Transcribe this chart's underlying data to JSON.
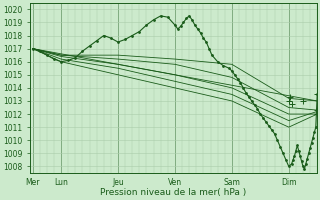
{
  "title": "Pression niveau de la mer( hPa )",
  "bg_color": "#cceacc",
  "grid_color": "#aaccaa",
  "line_color": "#1a5c1a",
  "ylim": [
    1007.5,
    1020.5
  ],
  "yticks": [
    1008,
    1009,
    1010,
    1011,
    1012,
    1013,
    1014,
    1015,
    1016,
    1017,
    1018,
    1019,
    1020
  ],
  "day_labels": [
    "Mer",
    "Lun",
    "Jeu",
    "Ven",
    "Sam",
    "Dim"
  ],
  "day_positions": [
    0,
    1,
    3,
    5,
    7,
    9
  ],
  "xlim": [
    -0.1,
    10
  ],
  "series_main": [
    [
      0,
      1017.0
    ],
    [
      0.25,
      1016.8
    ],
    [
      0.5,
      1016.5
    ],
    [
      0.75,
      1016.2
    ],
    [
      1.0,
      1016.0
    ],
    [
      1.25,
      1016.1
    ],
    [
      1.5,
      1016.3
    ],
    [
      1.75,
      1016.8
    ],
    [
      2.0,
      1017.2
    ],
    [
      2.25,
      1017.6
    ],
    [
      2.5,
      1018.0
    ],
    [
      2.75,
      1017.8
    ],
    [
      3.0,
      1017.5
    ],
    [
      3.25,
      1017.7
    ],
    [
      3.5,
      1018.0
    ],
    [
      3.75,
      1018.3
    ],
    [
      4.0,
      1018.8
    ],
    [
      4.25,
      1019.2
    ],
    [
      4.5,
      1019.5
    ],
    [
      4.75,
      1019.4
    ],
    [
      5.0,
      1018.8
    ],
    [
      5.1,
      1018.5
    ],
    [
      5.2,
      1018.7
    ],
    [
      5.3,
      1019.0
    ],
    [
      5.4,
      1019.3
    ],
    [
      5.5,
      1019.5
    ],
    [
      5.6,
      1019.2
    ],
    [
      5.7,
      1018.8
    ],
    [
      5.8,
      1018.5
    ],
    [
      5.9,
      1018.2
    ],
    [
      6.0,
      1017.8
    ],
    [
      6.1,
      1017.5
    ],
    [
      6.2,
      1017.0
    ],
    [
      6.3,
      1016.5
    ],
    [
      6.5,
      1016.0
    ],
    [
      6.7,
      1015.7
    ],
    [
      6.9,
      1015.5
    ],
    [
      7.0,
      1015.3
    ],
    [
      7.1,
      1015.0
    ],
    [
      7.2,
      1014.7
    ],
    [
      7.3,
      1014.4
    ],
    [
      7.4,
      1014.0
    ],
    [
      7.5,
      1013.6
    ],
    [
      7.6,
      1013.3
    ],
    [
      7.7,
      1013.0
    ],
    [
      7.8,
      1012.7
    ],
    [
      7.9,
      1012.4
    ],
    [
      8.0,
      1012.0
    ],
    [
      8.1,
      1011.7
    ],
    [
      8.2,
      1011.4
    ],
    [
      8.3,
      1011.1
    ],
    [
      8.4,
      1010.8
    ],
    [
      8.5,
      1010.5
    ],
    [
      8.6,
      1010.0
    ],
    [
      8.7,
      1009.5
    ],
    [
      8.8,
      1009.0
    ],
    [
      8.9,
      1008.5
    ],
    [
      9.0,
      1008.0
    ],
    [
      9.1,
      1008.2
    ],
    [
      9.15,
      1008.5
    ],
    [
      9.2,
      1008.8
    ],
    [
      9.25,
      1009.2
    ],
    [
      9.3,
      1009.6
    ],
    [
      9.35,
      1009.2
    ],
    [
      9.4,
      1008.8
    ],
    [
      9.45,
      1008.4
    ],
    [
      9.5,
      1008.0
    ],
    [
      9.55,
      1007.8
    ],
    [
      9.6,
      1008.2
    ],
    [
      9.65,
      1008.6
    ],
    [
      9.7,
      1009.0
    ],
    [
      9.75,
      1009.4
    ],
    [
      9.8,
      1009.8
    ],
    [
      9.85,
      1010.2
    ],
    [
      9.9,
      1010.6
    ],
    [
      9.95,
      1011.0
    ],
    [
      10.0,
      1013.5
    ]
  ],
  "series_smooth": [
    [
      [
        0,
        1017.0
      ],
      [
        1,
        1016.5
      ],
      [
        3,
        1016.5
      ],
      [
        5,
        1016.2
      ],
      [
        7,
        1015.8
      ],
      [
        9,
        1013.2
      ],
      [
        10,
        1013.0
      ]
    ],
    [
      [
        0,
        1017.0
      ],
      [
        10,
        1013.0
      ]
    ],
    [
      [
        0,
        1017.0
      ],
      [
        1,
        1016.5
      ],
      [
        3,
        1016.2
      ],
      [
        5,
        1015.8
      ],
      [
        7,
        1014.8
      ],
      [
        9,
        1012.5
      ],
      [
        10,
        1012.3
      ]
    ],
    [
      [
        0,
        1017.0
      ],
      [
        1,
        1016.4
      ],
      [
        3,
        1015.8
      ],
      [
        5,
        1015.0
      ],
      [
        7,
        1014.0
      ],
      [
        9,
        1012.0
      ],
      [
        10,
        1012.0
      ]
    ],
    [
      [
        0,
        1017.0
      ],
      [
        1,
        1016.2
      ],
      [
        3,
        1015.5
      ],
      [
        5,
        1014.5
      ],
      [
        7,
        1013.5
      ],
      [
        9,
        1011.5
      ],
      [
        10,
        1012.2
      ]
    ],
    [
      [
        0,
        1017.0
      ],
      [
        1,
        1016.0
      ],
      [
        3,
        1015.0
      ],
      [
        5,
        1014.0
      ],
      [
        7,
        1013.0
      ],
      [
        9,
        1011.0
      ],
      [
        10,
        1012.0
      ]
    ]
  ],
  "plus_markers": [
    [
      9.0,
      1013.0
    ],
    [
      9.05,
      1013.3
    ],
    [
      9.1,
      1012.8
    ],
    [
      9.5,
      1013.0
    ],
    [
      10.0,
      1013.5
    ],
    [
      10.0,
      1012.0
    ],
    [
      10.0,
      1012.3
    ]
  ]
}
